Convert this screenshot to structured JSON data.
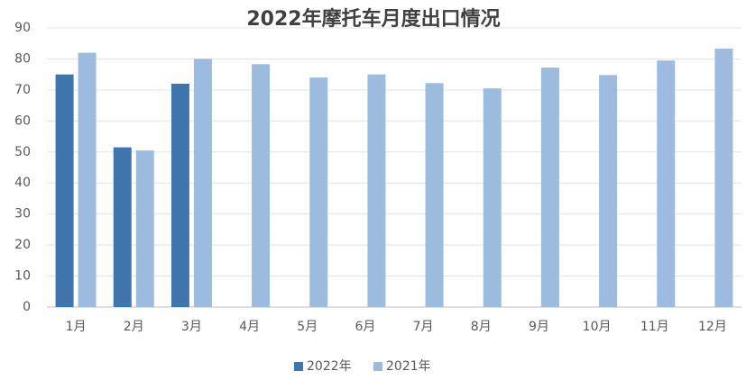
{
  "chart_data": {
    "type": "bar",
    "title": "2022年摩托车月度出口情况",
    "categories": [
      "1月",
      "2月",
      "3月",
      "4月",
      "5月",
      "6月",
      "7月",
      "8月",
      "9月",
      "10月",
      "11月",
      "12月"
    ],
    "series": [
      {
        "name": "2022年",
        "color": "#3f76ad",
        "values": [
          75,
          51.5,
          72,
          null,
          null,
          null,
          null,
          null,
          null,
          null,
          null,
          null
        ]
      },
      {
        "name": "2021年",
        "color": "#9dbbdf",
        "values": [
          82,
          50.5,
          80,
          78.3,
          74,
          75,
          72.2,
          70.5,
          77.2,
          74.8,
          79.5,
          83.3
        ]
      }
    ],
    "ylim": [
      0,
      90
    ],
    "yticks": [
      0,
      10,
      20,
      30,
      40,
      50,
      60,
      70,
      80,
      90
    ],
    "grid": true,
    "legend": "bottom"
  }
}
